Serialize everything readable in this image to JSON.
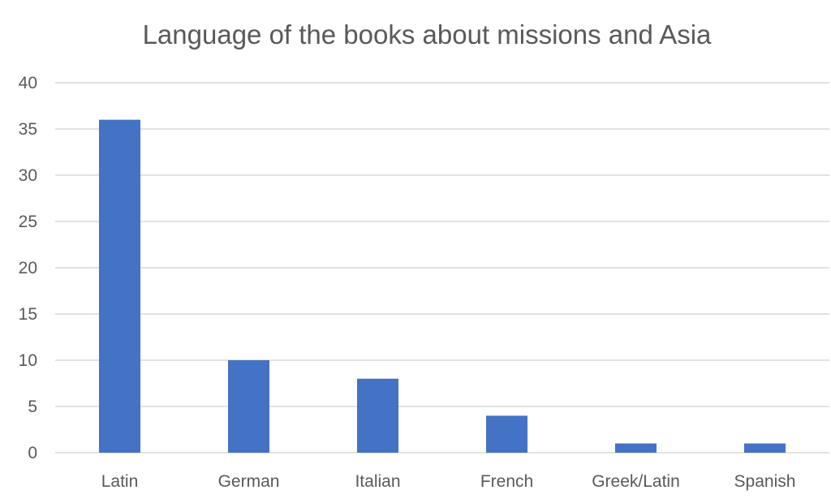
{
  "chart_data": {
    "type": "bar",
    "title": "Language of the books about missions and Asia",
    "categories": [
      "Latin",
      "German",
      "Italian",
      "French",
      "Greek/Latin",
      "Spanish"
    ],
    "values": [
      36,
      10,
      8,
      4,
      1,
      1
    ],
    "ylim": [
      0,
      40
    ],
    "yticks": [
      "0",
      "5",
      "10",
      "15",
      "20",
      "25",
      "30",
      "35",
      "40"
    ],
    "grid": true,
    "legend": "none",
    "bar_color": "#4472C4"
  }
}
